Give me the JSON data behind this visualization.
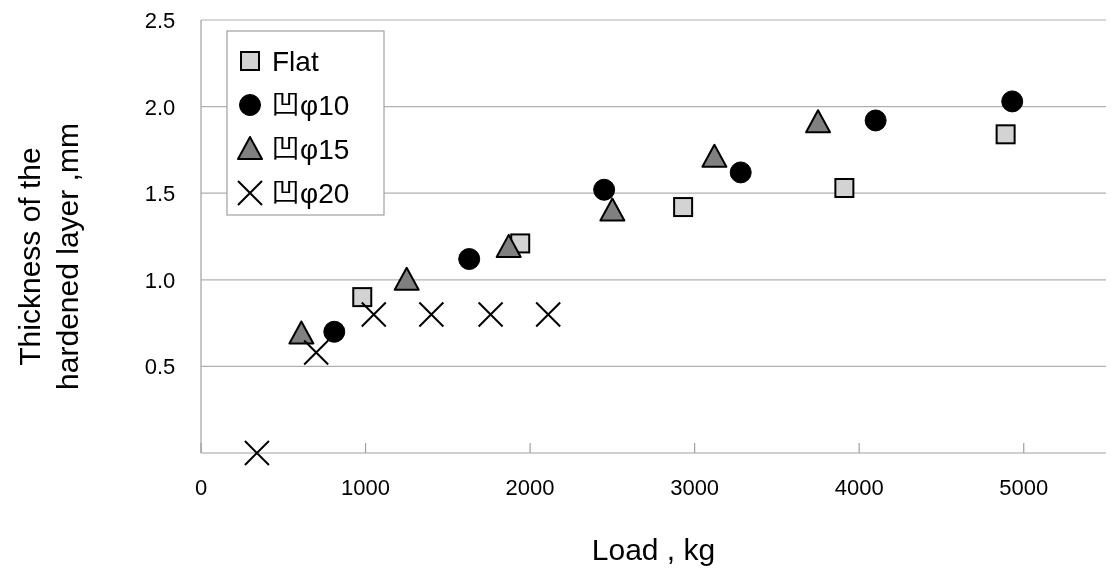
{
  "chart_data": {
    "type": "scatter",
    "xlabel": "Load , kg",
    "ylabel": "Thickness of the hardened layer ,mm",
    "xlim": [
      0,
      5500
    ],
    "xticks": [
      0,
      1000,
      2000,
      3000,
      4000,
      5000
    ],
    "ylim": [
      0,
      2.5
    ],
    "yticks": [
      0.5,
      {
        "value": 1,
        "label": "1.0"
      },
      1.5,
      {
        "value": 2,
        "label": "2.0"
      },
      2.5
    ],
    "grid": "y",
    "legend": "top left",
    "series": [
      {
        "name": "Flat",
        "color": "#d3d3d3",
        "marker": "square",
        "x": [
          980,
          1940,
          2930,
          3910,
          4890
        ],
        "values": [
          0.9,
          1.21,
          1.42,
          1.53,
          1.84
        ]
      },
      {
        "name": "凹φ10",
        "color": "#000000",
        "marker": "circle",
        "x": [
          810,
          1630,
          2450,
          3280,
          4100,
          4930
        ],
        "values": [
          0.7,
          1.12,
          1.52,
          1.62,
          1.92,
          2.03
        ]
      },
      {
        "name": "凹φ15",
        "color": "#808080",
        "marker": "triangle",
        "x": [
          610,
          1250,
          1870,
          2500,
          3120,
          3750
        ],
        "values": [
          0.69,
          1.0,
          1.19,
          1.4,
          1.71,
          1.91
        ]
      },
      {
        "name": "凹φ20",
        "color": "#000000",
        "marker": "cross",
        "x": [
          340,
          700,
          1050,
          1400,
          1760,
          2110
        ],
        "values": [
          0.0,
          0.58,
          0.8,
          0.8,
          0.8,
          0.8
        ]
      }
    ]
  }
}
